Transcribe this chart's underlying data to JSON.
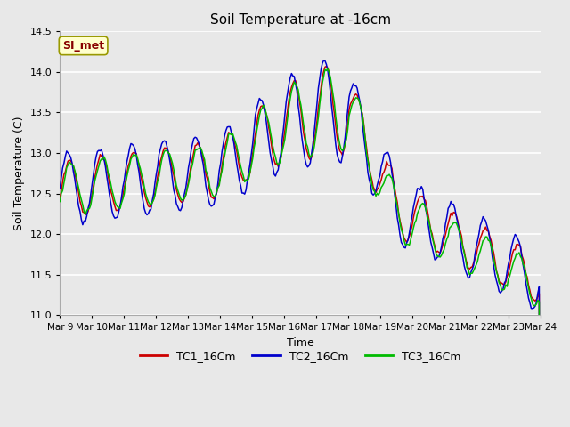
{
  "title": "Soil Temperature at -16cm",
  "xlabel": "Time",
  "ylabel": "Soil Temperature (C)",
  "ylim": [
    11.0,
    14.5
  ],
  "yticks": [
    11.0,
    11.5,
    12.0,
    12.5,
    13.0,
    13.5,
    14.0,
    14.5
  ],
  "bg_color": "#e8e8e8",
  "plot_bg_color": "#e8e8e8",
  "grid_color": "#ffffff",
  "series": [
    "TC1_16Cm",
    "TC2_16Cm",
    "TC3_16Cm"
  ],
  "colors": [
    "#cc0000",
    "#0000cc",
    "#00bb00"
  ],
  "legend_label": "SI_met",
  "legend_box_color": "#ffffcc",
  "legend_text_color": "#880000",
  "x_tick_labels": [
    "Mar 9",
    "Mar 10",
    "Mar 11",
    "Mar 12",
    "Mar 13",
    "Mar 14",
    "Mar 15",
    "Mar 16",
    "Mar 17",
    "Mar 18",
    "Mar 19",
    "Mar 20",
    "Mar 21",
    "Mar 22",
    "Mar 23",
    "Mar 24"
  ],
  "n_pts": 360
}
